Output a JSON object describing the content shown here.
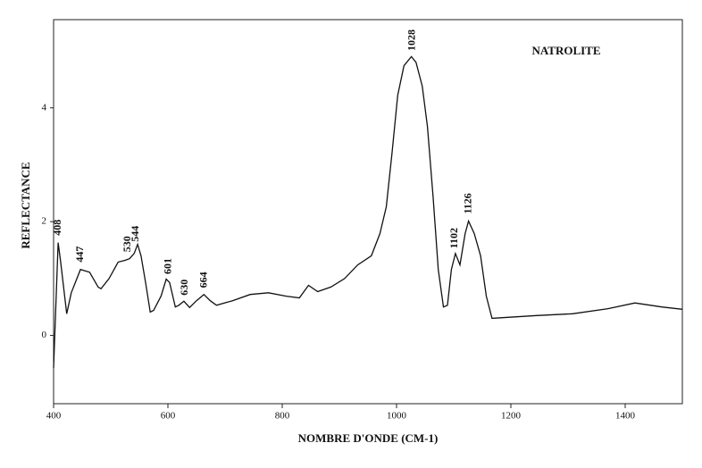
{
  "chart_data": {
    "type": "line",
    "title": "NATROLITE",
    "xlabel": "NOMBRE D'ONDE (CM-1)",
    "ylabel": "REFLECTANCE",
    "x": [
      400,
      408,
      412,
      423,
      431,
      447,
      463,
      478,
      483,
      497,
      513,
      525,
      533,
      541,
      547,
      553,
      561,
      569,
      575,
      588,
      597,
      603,
      613,
      619,
      628,
      638,
      650,
      663,
      674,
      685,
      713,
      744,
      776,
      807,
      830,
      846,
      862,
      885,
      909,
      932,
      956,
      971,
      982,
      992,
      1002,
      1013,
      1026,
      1034,
      1045,
      1054,
      1064,
      1073,
      1082,
      1089,
      1096,
      1103,
      1111,
      1120,
      1126,
      1136,
      1147,
      1157,
      1167,
      1182,
      1245,
      1308,
      1370,
      1417,
      1464,
      1500
    ],
    "values": [
      -0.57,
      1.63,
      1.32,
      0.38,
      0.75,
      1.16,
      1.11,
      0.85,
      0.82,
      1.0,
      1.29,
      1.32,
      1.35,
      1.44,
      1.6,
      1.4,
      0.93,
      0.41,
      0.44,
      0.69,
      0.99,
      0.93,
      0.5,
      0.53,
      0.6,
      0.49,
      0.61,
      0.72,
      0.61,
      0.53,
      0.61,
      0.72,
      0.75,
      0.69,
      0.66,
      0.88,
      0.77,
      0.85,
      1.0,
      1.24,
      1.4,
      1.79,
      2.26,
      3.2,
      4.22,
      4.74,
      4.9,
      4.8,
      4.38,
      3.67,
      2.42,
      1.16,
      0.5,
      0.53,
      1.16,
      1.44,
      1.24,
      1.79,
      2.01,
      1.79,
      1.4,
      0.69,
      0.3,
      0.31,
      0.35,
      0.38,
      0.47,
      0.57,
      0.5,
      0.46
    ],
    "color": "#111111",
    "peak_labels": [
      408,
      447,
      530,
      544,
      601,
      630,
      664,
      1028,
      1102,
      1126
    ],
    "xlim": [
      400,
      1500
    ],
    "ylim": [
      -1.2,
      5.55
    ],
    "xticks": [
      400,
      600,
      800,
      1000,
      1200,
      1400
    ],
    "yticks": [
      0,
      2,
      4
    ]
  }
}
